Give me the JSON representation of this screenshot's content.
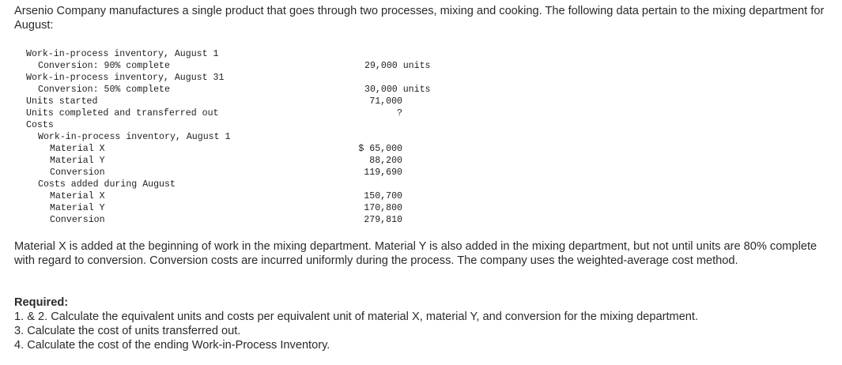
{
  "intro": "Arsenio Company manufactures a single product that goes through two processes, mixing and cooking. The following data pertain to the mixing department for August:",
  "data_rows": [
    {
      "label": "Work-in-process inventory, August 1",
      "value": ""
    },
    {
      "label": "Conversion: 90% complete",
      "value": "29,000 units"
    },
    {
      "label": "Work-in-process inventory, August 31",
      "value": ""
    },
    {
      "label": "Conversion: 50% complete",
      "value": "30,000 units"
    },
    {
      "label": "Units started",
      "value": "71,000"
    },
    {
      "label": "Units completed and transferred out",
      "value": "?"
    },
    {
      "label": "Costs",
      "value": ""
    },
    {
      "label": "Work-in-process inventory, August 1",
      "value": ""
    },
    {
      "label": "Material X",
      "value": "$ 65,000"
    },
    {
      "label": "Material Y",
      "value": "88,200"
    },
    {
      "label": "Conversion",
      "value": "119,690"
    },
    {
      "label": "Costs added during August",
      "value": ""
    },
    {
      "label": "Material X",
      "value": "150,700"
    },
    {
      "label": "Material Y",
      "value": "170,800"
    },
    {
      "label": "Conversion",
      "value": "279,810"
    }
  ],
  "description": "Material X is added at the beginning of work in the mixing department. Material Y is also added in the mixing department, but not until units are 80% complete with regard to conversion. Conversion costs are incurred uniformly during the process. The company uses the weighted-average cost method.",
  "required": {
    "heading": "Required:",
    "items": [
      "1. & 2. Calculate the equivalent units and costs per equivalent unit of material X, material Y, and conversion for the mixing department.",
      "3. Calculate the cost of units transferred out.",
      "4. Calculate the cost of the ending Work-in-Process Inventory."
    ]
  }
}
